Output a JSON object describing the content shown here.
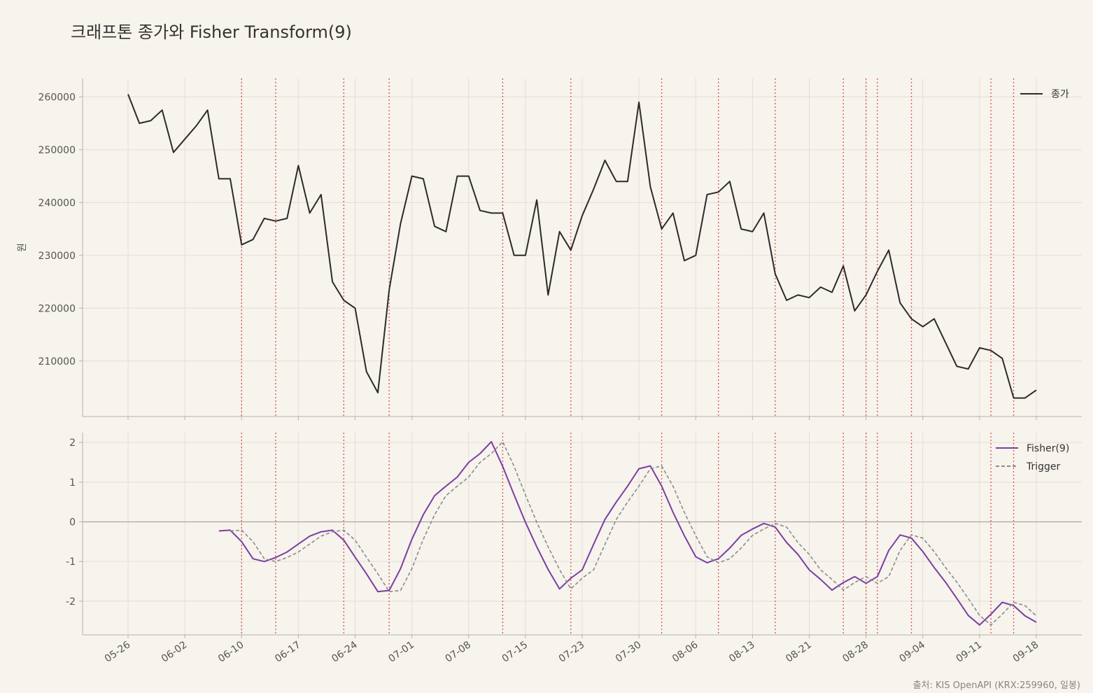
{
  "title": "크래프톤 종가와 Fisher Transform(9)",
  "source": "출처: KIS OpenAPI (KRX:259960, 일봉)",
  "colors": {
    "background": "#f7f3ed",
    "close": "#2b2b2b",
    "fisher": "#7b3fa0",
    "trigger": "#8c8c8c",
    "signal": "#d9534f",
    "grid": "#e4dfd7",
    "axis": "#b5b0aa"
  },
  "chart_data": [
    {
      "type": "line",
      "ylabel": "원",
      "ylim": [
        199500,
        263500
      ],
      "yticks": [
        210000,
        220000,
        230000,
        240000,
        250000,
        260000
      ],
      "yticklabels": [
        "210000",
        "220000",
        "230000",
        "240000",
        "250000",
        "260000"
      ],
      "legend": [
        "종가"
      ],
      "legend_position": "top-right",
      "grid": true,
      "series": [
        {
          "name": "종가",
          "values": [
            260500,
            255000,
            255500,
            257500,
            249500,
            252000,
            254500,
            257500,
            244500,
            244500,
            232000,
            233000,
            237000,
            236500,
            237000,
            247000,
            238000,
            241500,
            225000,
            221500,
            220000,
            208000,
            204000,
            223500,
            236000,
            245000,
            244500,
            235500,
            234500,
            245000,
            245000,
            238500,
            238000,
            238000,
            230000,
            230000,
            240500,
            222500,
            234500,
            231000,
            237500,
            242500,
            248000,
            244000,
            244000,
            259000,
            243000,
            235000,
            238000,
            229000,
            230000,
            241500,
            242000,
            244000,
            235000,
            234500,
            238000,
            226500,
            221500,
            222500,
            222000,
            224000,
            223000,
            228000,
            219500,
            222500,
            227000,
            231000,
            221000,
            218000,
            216500,
            218000,
            213500,
            209000,
            208500,
            212500,
            212000,
            210500,
            203000,
            203000,
            204500
          ]
        }
      ]
    },
    {
      "type": "line",
      "ylim": [
        -2.85,
        2.25
      ],
      "yticks": [
        -2,
        -1,
        0,
        1,
        2
      ],
      "yticklabels": [
        "-2",
        "-1",
        "0",
        "1",
        "2"
      ],
      "legend": [
        "Fisher(9)",
        "Trigger"
      ],
      "legend_position": "top-right",
      "grid": true,
      "series": [
        {
          "name": "Fisher(9)",
          "start_index": 8,
          "values": [
            -0.23,
            -0.21,
            -0.5,
            -0.93,
            -1.0,
            -0.9,
            -0.76,
            -0.56,
            -0.36,
            -0.25,
            -0.21,
            -0.46,
            -0.89,
            -1.31,
            -1.76,
            -1.73,
            -1.18,
            -0.44,
            0.18,
            0.66,
            0.9,
            1.13,
            1.5,
            1.72,
            2.02,
            1.4,
            0.68,
            -0.01,
            -0.63,
            -1.2,
            -1.69,
            -1.42,
            -1.21,
            -0.57,
            0.06,
            0.5,
            0.9,
            1.34,
            1.41,
            0.9,
            0.24,
            -0.35,
            -0.88,
            -1.03,
            -0.93,
            -0.66,
            -0.34,
            -0.18,
            -0.04,
            -0.13,
            -0.52,
            -0.82,
            -1.21,
            -1.45,
            -1.72,
            -1.53,
            -1.38,
            -1.55,
            -1.38,
            -0.72,
            -0.33,
            -0.41,
            -0.75,
            -1.15,
            -1.52,
            -1.93,
            -2.36,
            -2.6,
            -2.33,
            -2.03,
            -2.11,
            -2.37,
            -2.53
          ]
        },
        {
          "name": "Trigger",
          "start_index": 9,
          "values": [
            -0.23,
            -0.21,
            -0.5,
            -0.93,
            -1.0,
            -0.9,
            -0.76,
            -0.56,
            -0.36,
            -0.25,
            -0.21,
            -0.46,
            -0.89,
            -1.31,
            -1.76,
            -1.73,
            -1.18,
            -0.44,
            0.18,
            0.66,
            0.9,
            1.13,
            1.5,
            1.72,
            2.02,
            1.4,
            0.68,
            -0.01,
            -0.63,
            -1.2,
            -1.69,
            -1.42,
            -1.21,
            -0.57,
            0.06,
            0.5,
            0.9,
            1.34,
            1.41,
            0.9,
            0.24,
            -0.35,
            -0.88,
            -1.03,
            -0.93,
            -0.66,
            -0.34,
            -0.18,
            -0.04,
            -0.13,
            -0.52,
            -0.82,
            -1.21,
            -1.45,
            -1.72,
            -1.53,
            -1.38,
            -1.55,
            -1.38,
            -0.72,
            -0.33,
            -0.41,
            -0.75,
            -1.15,
            -1.52,
            -1.93,
            -2.36,
            -2.6,
            -2.33,
            -2.03,
            -2.11,
            -2.37
          ]
        }
      ],
      "zero_line": true
    }
  ],
  "x_axis": {
    "count": 81,
    "tick_indices": [
      0,
      5,
      10,
      15,
      20,
      25,
      30,
      35,
      40,
      45,
      50,
      55,
      60,
      65,
      70,
      75,
      80
    ],
    "tick_labels": [
      "05-26",
      "06-02",
      "06-10",
      "06-17",
      "06-24",
      "07-01",
      "07-08",
      "07-15",
      "07-23",
      "07-30",
      "08-06",
      "08-13",
      "08-21",
      "08-28",
      "09-04",
      "09-11",
      "09-18"
    ]
  },
  "signal_lines": [
    10,
    13,
    19,
    23,
    33,
    39,
    47,
    52,
    57,
    63,
    65,
    66,
    69,
    76,
    78
  ]
}
